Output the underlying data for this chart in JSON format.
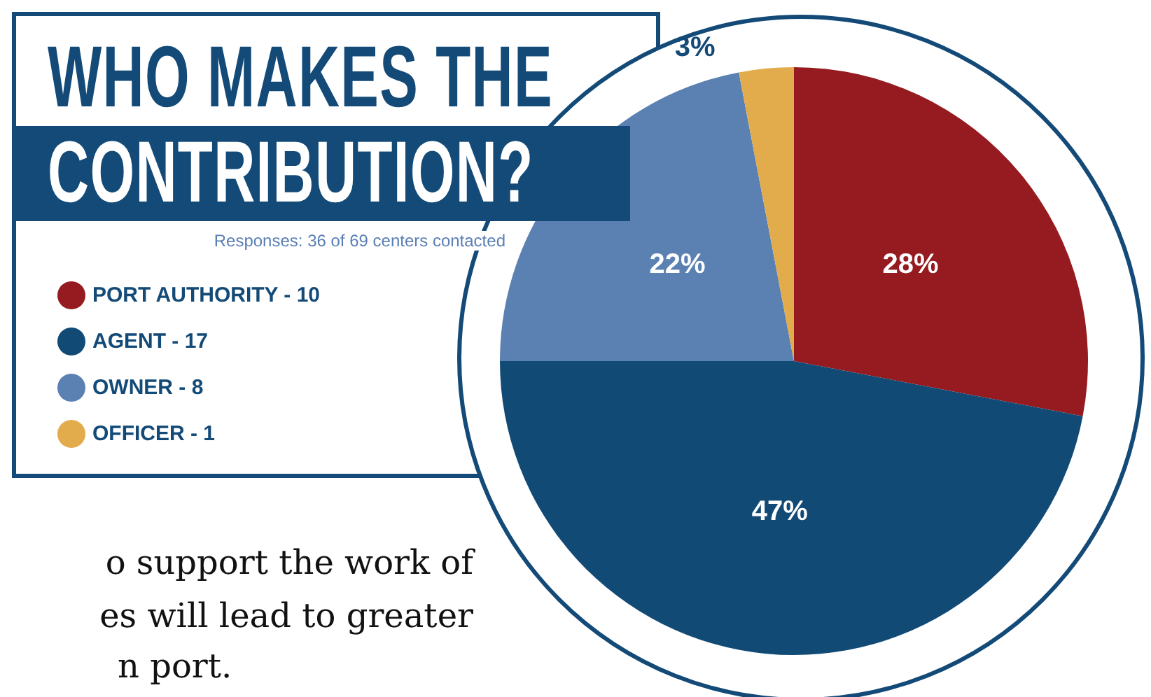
{
  "chart_data": {
    "type": "pie",
    "title": "WHO MAKES THE CONTRIBUTION?",
    "subtitle": "Responses: 36 of 69 centers contacted",
    "categories": [
      "PORT AUTHORITY - 10",
      "AGENT - 17",
      "OWNER - 8",
      "OFFICER - 1"
    ],
    "values": [
      28,
      47,
      22,
      3
    ],
    "colors": [
      "#951b20",
      "#124a76",
      "#5b80b2",
      "#e2ac4c"
    ],
    "value_labels": [
      "28%",
      "47%",
      "22%",
      "3%"
    ],
    "legend": "left",
    "annotations": [
      "o support the work of",
      "es will lead to greater",
      "n port."
    ]
  }
}
